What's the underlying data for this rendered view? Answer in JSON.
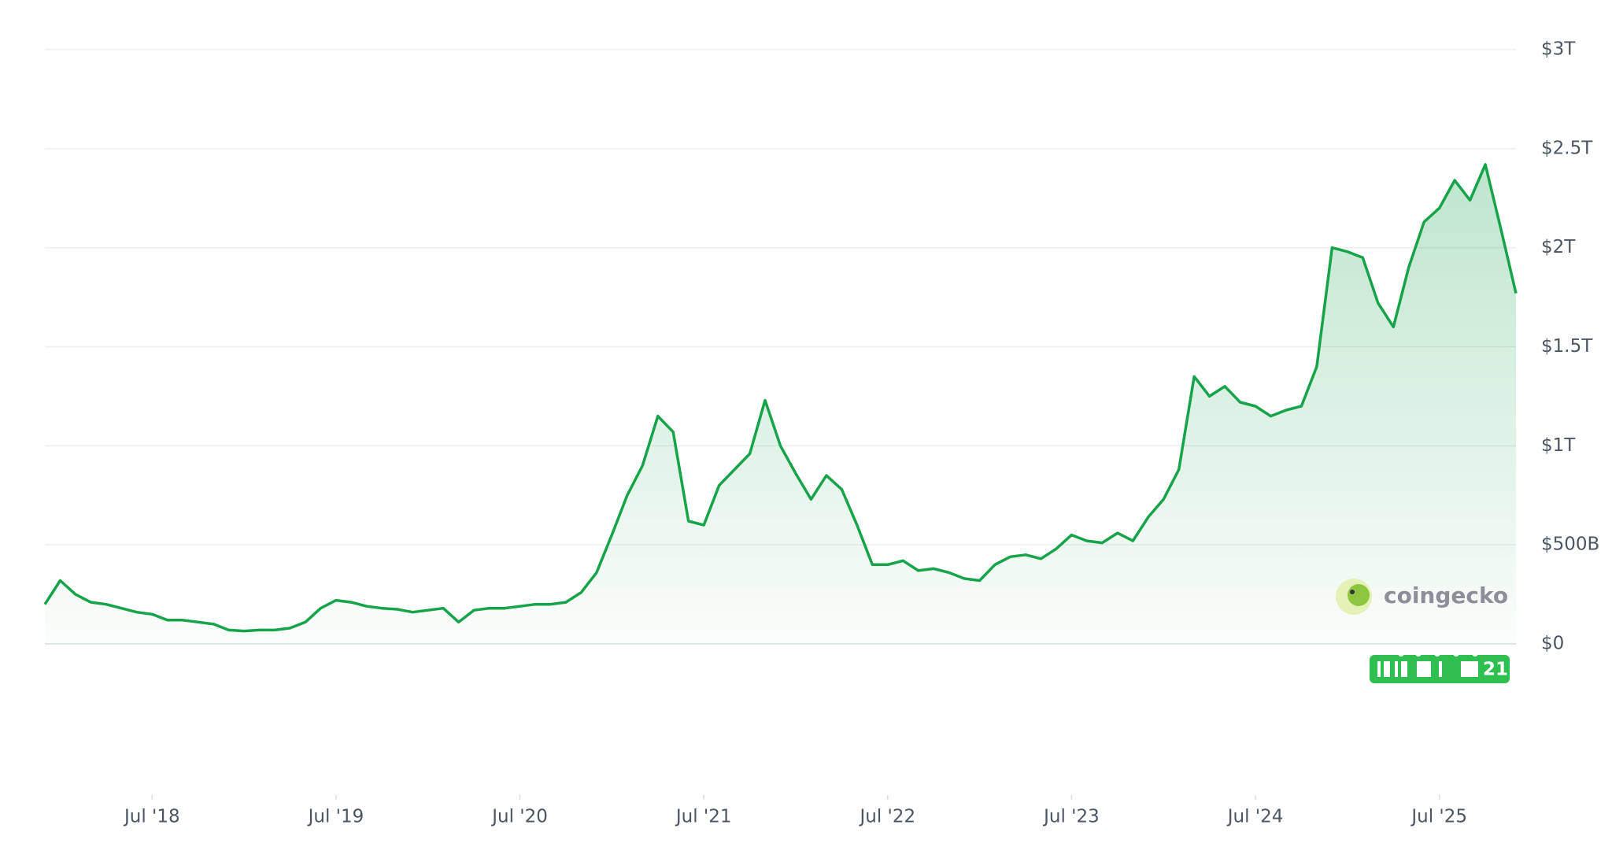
{
  "chart_data": {
    "type": "line",
    "x": [
      "2017-12",
      "2018-01",
      "2018-02",
      "2018-03",
      "2018-04",
      "2018-05",
      "2018-06",
      "2018-07",
      "2018-08",
      "2018-09",
      "2018-10",
      "2018-11",
      "2018-12",
      "2019-01",
      "2019-02",
      "2019-03",
      "2019-04",
      "2019-05",
      "2019-06",
      "2019-07",
      "2019-08",
      "2019-09",
      "2019-10",
      "2019-11",
      "2019-12",
      "2020-01",
      "2020-02",
      "2020-03",
      "2020-04",
      "2020-05",
      "2020-06",
      "2020-07",
      "2020-08",
      "2020-09",
      "2020-10",
      "2020-11",
      "2020-12",
      "2021-01",
      "2021-02",
      "2021-03",
      "2021-04",
      "2021-05",
      "2021-06",
      "2021-07",
      "2021-08",
      "2021-09",
      "2021-10",
      "2021-11",
      "2021-12",
      "2022-01",
      "2022-02",
      "2022-03",
      "2022-04",
      "2022-05",
      "2022-06",
      "2022-07",
      "2022-08",
      "2022-09",
      "2022-10",
      "2022-11",
      "2022-12",
      "2023-01",
      "2023-02",
      "2023-03",
      "2023-04",
      "2023-05",
      "2023-06",
      "2023-07",
      "2023-08",
      "2023-09",
      "2023-10",
      "2023-11",
      "2023-12",
      "2024-01",
      "2024-02",
      "2024-03",
      "2024-04",
      "2024-05",
      "2024-06",
      "2024-07",
      "2024-08",
      "2024-09",
      "2024-10",
      "2024-11",
      "2024-12",
      "2025-01",
      "2025-02",
      "2025-03",
      "2025-04",
      "2025-05",
      "2025-06",
      "2025-07",
      "2025-08",
      "2025-09",
      "2025-10",
      "2025-11",
      "2025-12"
    ],
    "series": [
      {
        "color": "#16a34a",
        "values": [
          200000000000.0,
          320000000000.0,
          250000000000.0,
          210000000000.0,
          200000000000.0,
          180000000000.0,
          160000000000.0,
          150000000000.0,
          120000000000.0,
          120000000000.0,
          110000000000.0,
          100000000000.0,
          70000000000.0,
          65000000000.0,
          70000000000.0,
          70000000000.0,
          80000000000.0,
          110000000000.0,
          180000000000.0,
          220000000000.0,
          210000000000.0,
          190000000000.0,
          180000000000.0,
          175000000000.0,
          160000000000.0,
          170000000000.0,
          180000000000.0,
          110000000000.0,
          170000000000.0,
          180000000000.0,
          180000000000.0,
          190000000000.0,
          200000000000.0,
          200000000000.0,
          210000000000.0,
          260000000000.0,
          360000000000.0,
          550000000000.0,
          750000000000.0,
          900000000000.0,
          1150000000000.0,
          1070000000000.0,
          620000000000.0,
          600000000000.0,
          800000000000.0,
          880000000000.0,
          960000000000.0,
          1230000000000.0,
          1000000000000.0,
          860000000000.0,
          730000000000.0,
          850000000000.0,
          780000000000.0,
          600000000000.0,
          400000000000.0,
          400000000000.0,
          420000000000.0,
          370000000000.0,
          380000000000.0,
          360000000000.0,
          330000000000.0,
          320000000000.0,
          400000000000.0,
          440000000000.0,
          450000000000.0,
          430000000000.0,
          480000000000.0,
          550000000000.0,
          520000000000.0,
          510000000000.0,
          560000000000.0,
          520000000000.0,
          640000000000.0,
          730000000000.0,
          880000000000.0,
          1350000000000.0,
          1250000000000.0,
          1300000000000.0,
          1220000000000.0,
          1200000000000.0,
          1150000000000.0,
          1180000000000.0,
          1200000000000.0,
          1400000000000.0,
          2000000000000.0,
          1980000000000.0,
          1950000000000.0,
          1720000000000.0,
          1600000000000.0,
          1900000000000.0,
          2130000000000.0,
          2200000000000.0,
          2340000000000.0,
          2240000000000.0,
          2420000000000.0,
          2100000000000.0,
          1770000000000.0
        ]
      }
    ],
    "xlim": [
      "2017-12",
      "2025-12"
    ],
    "xticks": [
      {
        "value": "2018-07",
        "label": "Jul '18"
      },
      {
        "value": "2019-07",
        "label": "Jul '19"
      },
      {
        "value": "2020-07",
        "label": "Jul '20"
      },
      {
        "value": "2021-07",
        "label": "Jul '21"
      },
      {
        "value": "2022-07",
        "label": "Jul '22"
      },
      {
        "value": "2023-07",
        "label": "Jul '23"
      },
      {
        "value": "2024-07",
        "label": "Jul '24"
      },
      {
        "value": "2025-07",
        "label": "Jul '25"
      }
    ],
    "ylim": [
      0,
      3000000000000.0
    ],
    "yticks": [
      {
        "value": 0,
        "label": "$0"
      },
      {
        "value": 500000000000.0,
        "label": "$500B"
      },
      {
        "value": 1000000000000.0,
        "label": "$1T"
      },
      {
        "value": 1500000000000.0,
        "label": "$1.5T"
      },
      {
        "value": 2000000000000.0,
        "label": "$2T"
      },
      {
        "value": 2500000000000.0,
        "label": "$2.5T"
      },
      {
        "value": 3000000000000.0,
        "label": "$3T"
      }
    ],
    "grid": true,
    "watermark": "coingecko",
    "news_badge": "21"
  }
}
